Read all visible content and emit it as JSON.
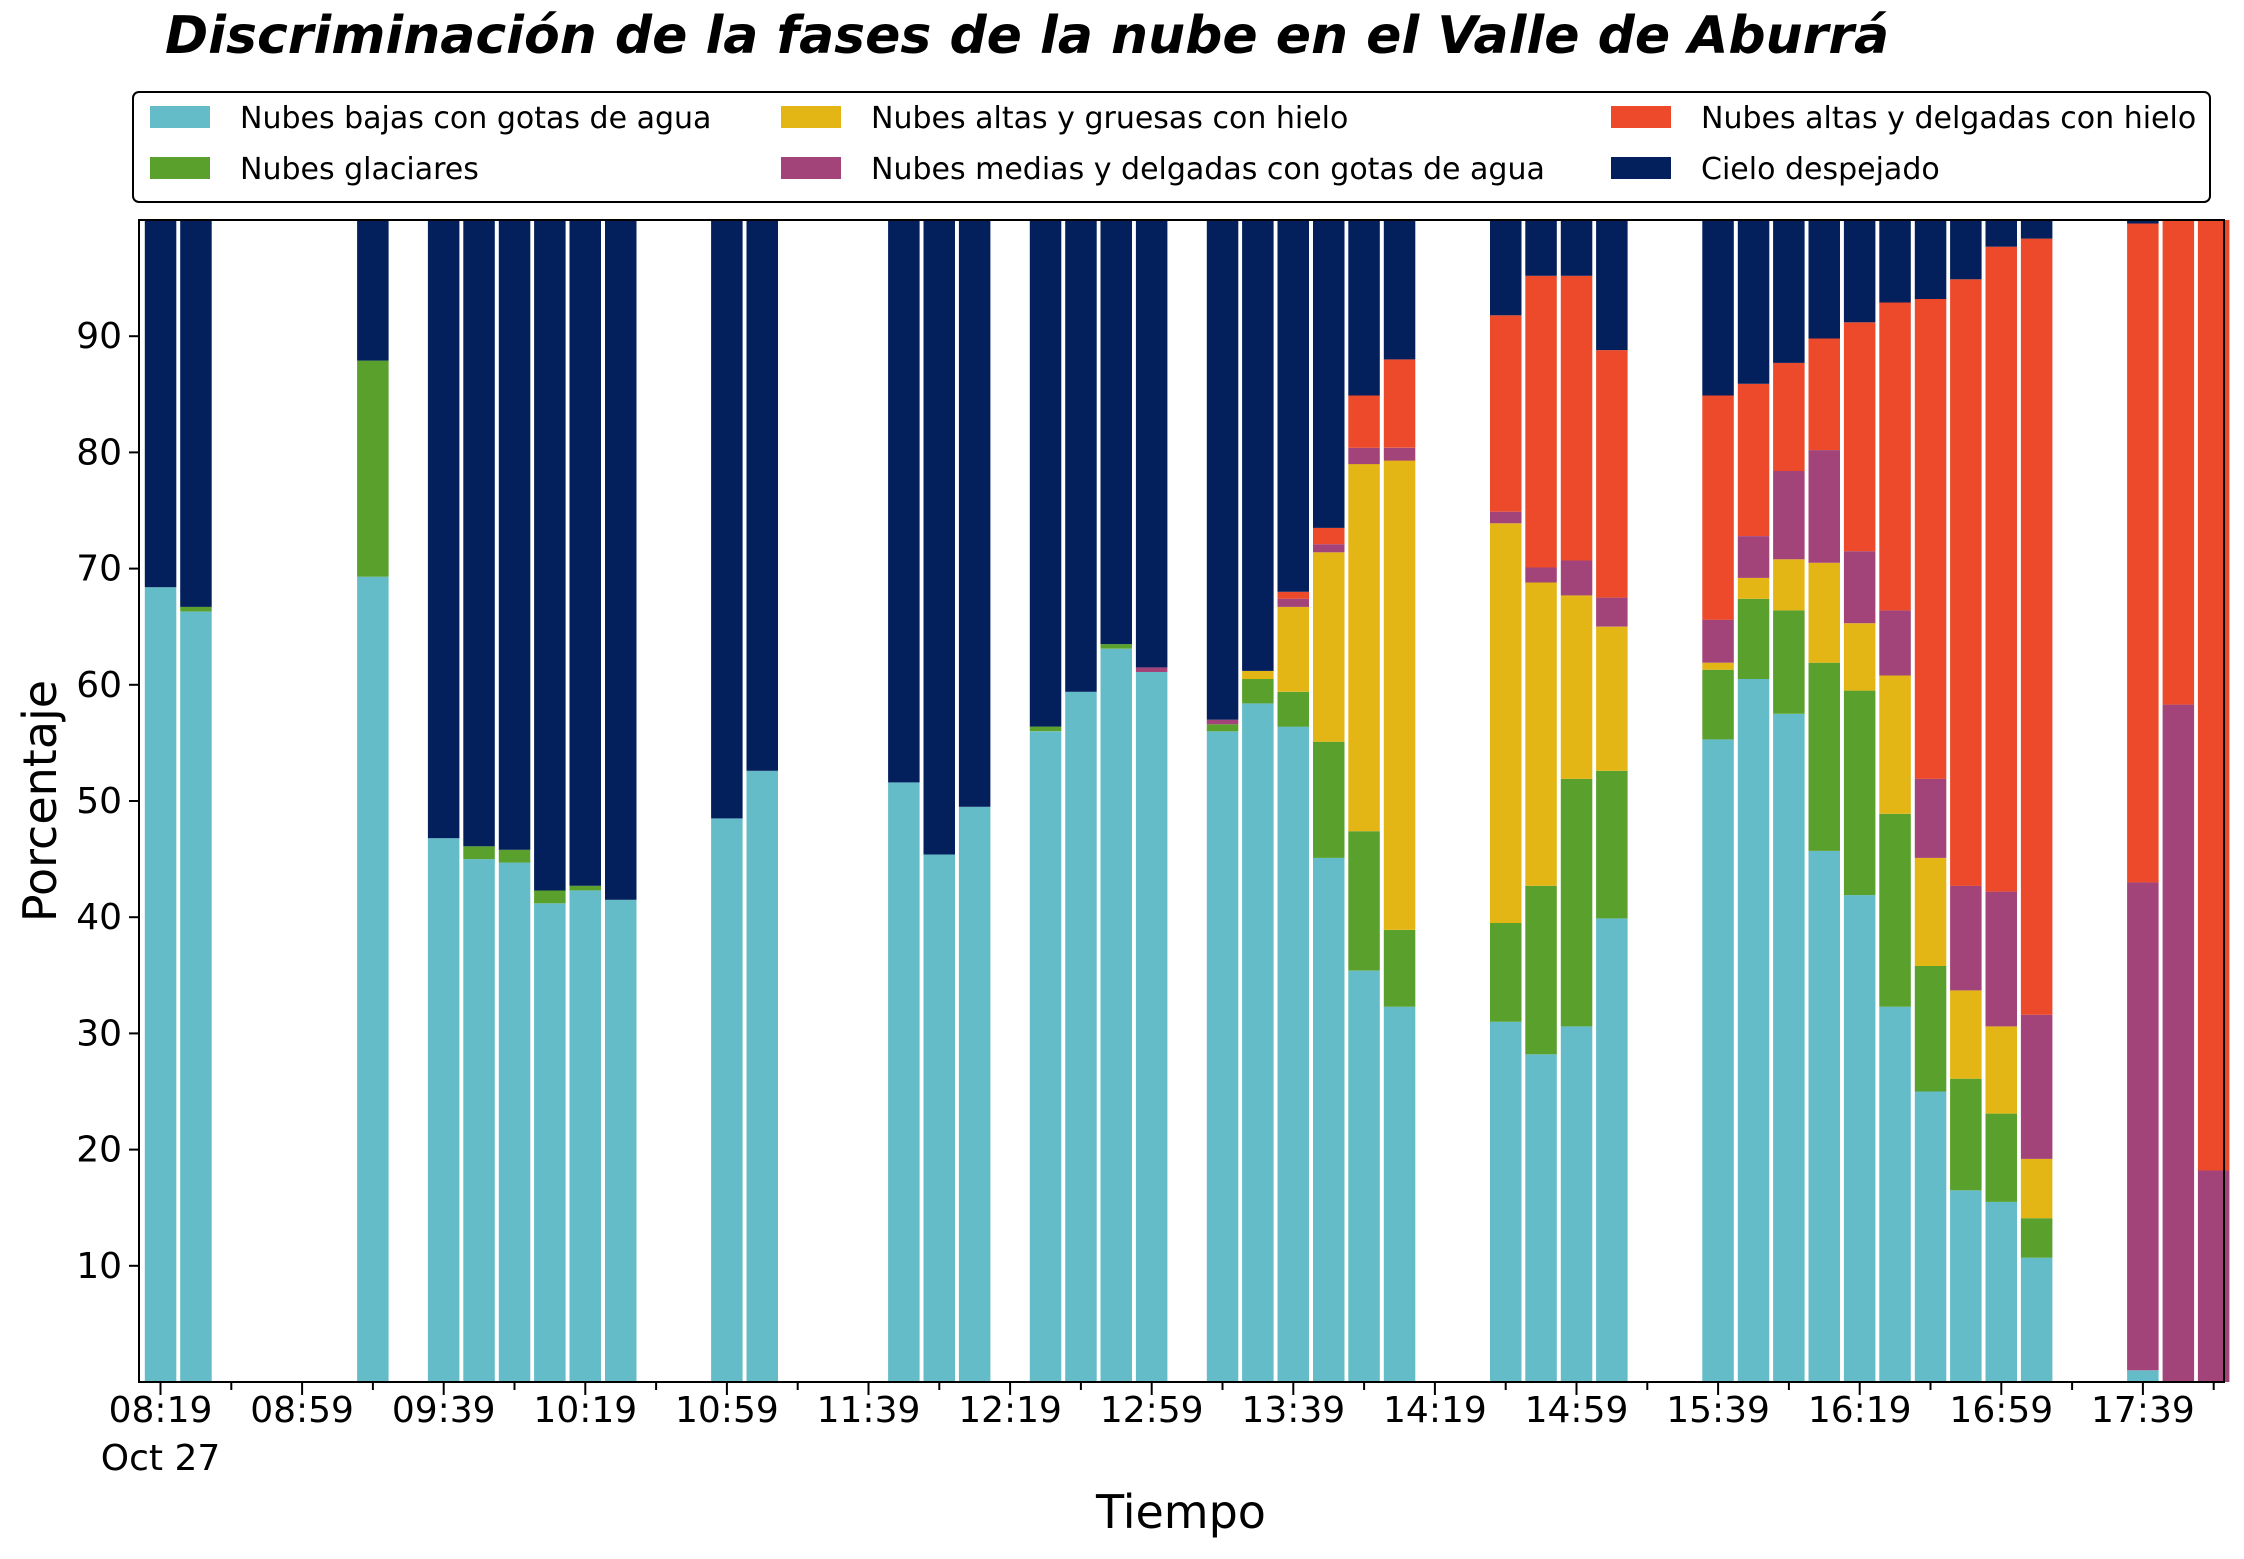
{
  "chart_data": {
    "type": "bar",
    "stacked": true,
    "title": "Discriminación de la fases de la nube en el Valle de Aburrá",
    "xlabel": "Tiempo",
    "ylabel": "Porcentaje",
    "ylim": [
      0,
      100
    ],
    "yticks": [
      10,
      20,
      30,
      40,
      50,
      60,
      70,
      80,
      90
    ],
    "xticks": [
      {
        "slot": 0,
        "label": "08:19",
        "sublabel": "Oct 27"
      },
      {
        "slot": 4,
        "label": "08:59"
      },
      {
        "slot": 8,
        "label": "09:39"
      },
      {
        "slot": 12,
        "label": "10:19"
      },
      {
        "slot": 16,
        "label": "10:59"
      },
      {
        "slot": 20,
        "label": "11:39"
      },
      {
        "slot": 24,
        "label": "12:19"
      },
      {
        "slot": 28,
        "label": "12:59"
      },
      {
        "slot": 32,
        "label": "13:39"
      },
      {
        "slot": 36,
        "label": "14:19"
      },
      {
        "slot": 40,
        "label": "14:59"
      },
      {
        "slot": 44,
        "label": "15:39"
      },
      {
        "slot": 48,
        "label": "16:19"
      },
      {
        "slot": 52,
        "label": "16:59"
      },
      {
        "slot": 56,
        "label": "17:39"
      }
    ],
    "slots": 59,
    "legend_position": "top",
    "series": [
      {
        "name": "Nubes bajas con gotas de agua",
        "color": "#64bcc8"
      },
      {
        "name": "Nubes glaciares",
        "color": "#5aa02c"
      },
      {
        "name": "Nubes altas y gruesas con hielo",
        "color": "#e3b616"
      },
      {
        "name": "Nubes medias y delgadas con gotas de agua",
        "color": "#a2447a"
      },
      {
        "name": "Nubes altas y delgadas con hielo",
        "color": "#ec4a2b"
      },
      {
        "name": "Cielo despejado",
        "color": "#031f5c"
      }
    ],
    "bars": [
      {
        "slot": 0,
        "values": [
          68.4,
          0,
          0,
          0,
          0,
          31.6
        ]
      },
      {
        "slot": 1,
        "values": [
          66.3,
          0.4,
          0,
          0,
          0,
          33.3
        ]
      },
      {
        "slot": 6,
        "values": [
          69.3,
          18.6,
          0,
          0,
          0,
          12.1
        ]
      },
      {
        "slot": 8,
        "values": [
          46.8,
          0,
          0,
          0,
          0,
          53.2
        ]
      },
      {
        "slot": 9,
        "values": [
          45.0,
          1.1,
          0,
          0,
          0,
          53.9
        ]
      },
      {
        "slot": 10,
        "values": [
          44.7,
          1.1,
          0,
          0,
          0,
          54.2
        ]
      },
      {
        "slot": 11,
        "values": [
          41.2,
          1.1,
          0,
          0,
          0,
          57.7
        ]
      },
      {
        "slot": 12,
        "values": [
          42.3,
          0.4,
          0,
          0,
          0,
          57.3
        ]
      },
      {
        "slot": 13,
        "values": [
          41.5,
          0,
          0,
          0,
          0,
          58.5
        ]
      },
      {
        "slot": 16,
        "values": [
          48.5,
          0,
          0,
          0,
          0,
          51.5
        ]
      },
      {
        "slot": 17,
        "values": [
          52.6,
          0,
          0,
          0,
          0,
          47.4
        ]
      },
      {
        "slot": 21,
        "values": [
          51.6,
          0,
          0,
          0,
          0,
          48.4
        ]
      },
      {
        "slot": 22,
        "values": [
          45.4,
          0,
          0,
          0,
          0,
          54.6
        ]
      },
      {
        "slot": 23,
        "values": [
          49.5,
          0,
          0,
          0,
          0,
          50.5
        ]
      },
      {
        "slot": 25,
        "values": [
          56.0,
          0.4,
          0,
          0,
          0,
          43.6
        ]
      },
      {
        "slot": 26,
        "values": [
          59.4,
          0,
          0,
          0,
          0,
          40.6
        ]
      },
      {
        "slot": 27,
        "values": [
          63.1,
          0.4,
          0,
          0,
          0,
          36.5
        ]
      },
      {
        "slot": 28,
        "values": [
          61.1,
          0,
          0,
          0.4,
          0,
          38.5
        ]
      },
      {
        "slot": 30,
        "values": [
          56.0,
          0.6,
          0,
          0.4,
          0,
          43.0
        ]
      },
      {
        "slot": 31,
        "values": [
          58.4,
          2.1,
          0.7,
          0,
          0,
          38.8
        ]
      },
      {
        "slot": 32,
        "values": [
          56.4,
          3.0,
          7.3,
          0.7,
          0.6,
          32.0
        ]
      },
      {
        "slot": 33,
        "values": [
          45.1,
          10.0,
          16.3,
          0.7,
          1.4,
          26.5
        ]
      },
      {
        "slot": 34,
        "values": [
          35.4,
          12.0,
          31.6,
          1.4,
          4.5,
          15.1
        ]
      },
      {
        "slot": 35,
        "values": [
          32.3,
          6.6,
          40.4,
          1.1,
          7.6,
          12.0
        ]
      },
      {
        "slot": 38,
        "values": [
          31.0,
          8.5,
          34.4,
          1.0,
          16.9,
          8.2
        ]
      },
      {
        "slot": 39,
        "values": [
          28.2,
          14.5,
          26.1,
          1.3,
          25.1,
          4.8
        ]
      },
      {
        "slot": 40,
        "values": [
          30.6,
          21.3,
          15.8,
          3.0,
          24.5,
          4.8
        ]
      },
      {
        "slot": 41,
        "values": [
          39.9,
          12.7,
          12.4,
          2.5,
          21.3,
          11.2
        ]
      },
      {
        "slot": 44,
        "values": [
          55.3,
          6.0,
          0.6,
          3.7,
          19.3,
          15.1
        ]
      },
      {
        "slot": 45,
        "values": [
          60.5,
          6.9,
          1.8,
          3.6,
          13.1,
          14.1
        ]
      },
      {
        "slot": 46,
        "values": [
          57.5,
          8.9,
          4.4,
          7.6,
          9.3,
          12.3
        ]
      },
      {
        "slot": 47,
        "values": [
          45.7,
          16.2,
          8.6,
          9.7,
          9.6,
          10.2
        ]
      },
      {
        "slot": 48,
        "values": [
          41.9,
          17.6,
          5.8,
          6.2,
          19.7,
          8.8
        ]
      },
      {
        "slot": 49,
        "values": [
          32.3,
          16.6,
          11.9,
          5.6,
          26.5,
          7.1
        ]
      },
      {
        "slot": 50,
        "values": [
          25.0,
          10.8,
          9.3,
          6.8,
          41.3,
          6.8
        ]
      },
      {
        "slot": 51,
        "values": [
          16.5,
          9.6,
          7.6,
          9.0,
          52.2,
          5.1
        ]
      },
      {
        "slot": 52,
        "values": [
          15.5,
          7.6,
          7.5,
          11.6,
          55.5,
          2.3
        ]
      },
      {
        "slot": 53,
        "values": [
          10.7,
          3.4,
          5.1,
          12.4,
          66.8,
          1.6
        ]
      },
      {
        "slot": 56,
        "values": [
          1.0,
          0,
          0,
          42.0,
          56.7,
          0.3
        ]
      },
      {
        "slot": 57,
        "values": [
          0,
          0,
          0,
          58.3,
          41.7,
          0
        ]
      },
      {
        "slot": 58,
        "values": [
          0,
          0,
          0,
          18.2,
          81.8,
          0
        ]
      }
    ]
  }
}
